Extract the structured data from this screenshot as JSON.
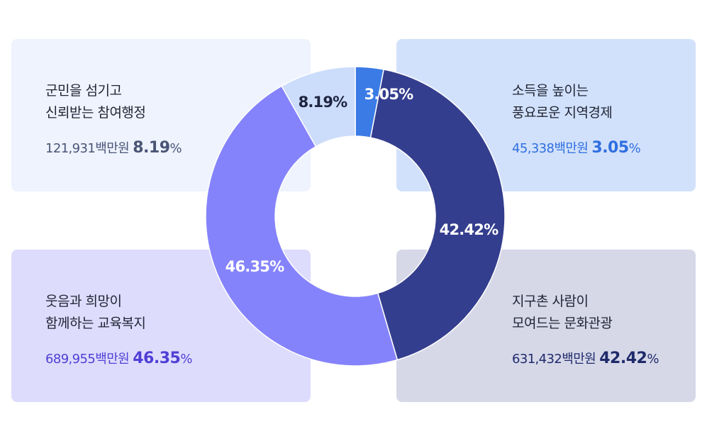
{
  "cards": [
    {
      "id": "card-tl",
      "title_line1": "군민을 섬기고",
      "title_line2": "신뢰받는 참여행정",
      "amount": "121,931백만원",
      "pct": "8.19",
      "pct_sign": "%",
      "color": "#4a5576"
    },
    {
      "id": "card-tr",
      "title_line1": "소득을 높이는",
      "title_line2": "풍요로운 지역경제",
      "amount": "45,338백만원",
      "pct": "3.05",
      "pct_sign": "%",
      "color": "#2f6fe0"
    },
    {
      "id": "card-bl",
      "title_line1": "웃음과 희망이",
      "title_line2": "함께하는 교육복지",
      "amount": "689,955백만원",
      "pct": "46.35",
      "pct_sign": "%",
      "color": "#4f3fd6"
    },
    {
      "id": "card-br",
      "title_line1": "지구촌 사람이",
      "title_line2": "모여드는 문화관광",
      "amount": "631,432백만원",
      "pct": "42.42",
      "pct_sign": "%",
      "color": "#1f2a6b"
    }
  ],
  "chart_data": {
    "type": "pie",
    "donut": true,
    "slices": [
      {
        "label": "3.05%",
        "value": 3.05,
        "color": "#3b7be6",
        "text_color": "#ffffff"
      },
      {
        "label": "42.42%",
        "value": 42.42,
        "color": "#343e8e",
        "text_color": "#ffffff"
      },
      {
        "label": "46.35%",
        "value": 46.35,
        "color": "#8583fb",
        "text_color": "#ffffff"
      },
      {
        "label": "8.19%",
        "value": 8.19,
        "color": "#ccdcfb",
        "text_color": "#1e2540"
      }
    ]
  }
}
